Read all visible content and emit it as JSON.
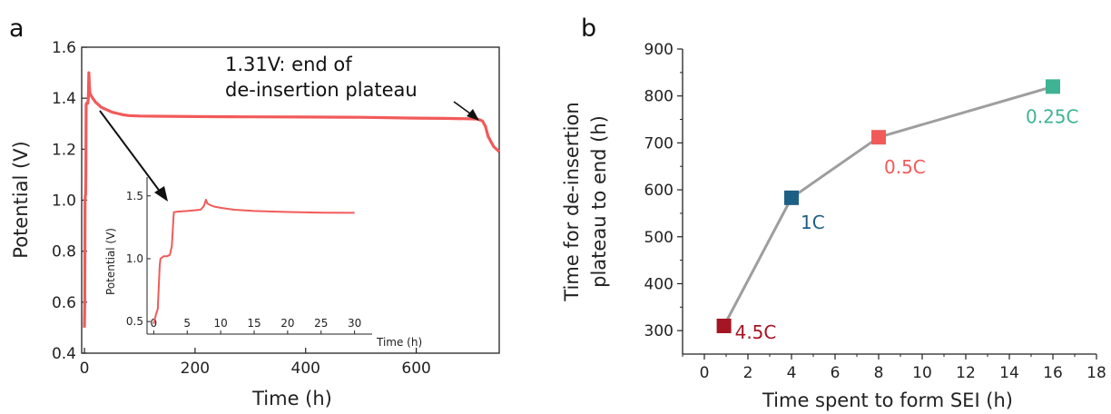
{
  "chart_data": [
    {
      "panel_label": "a",
      "type": "line",
      "xlabel": "Time (h)",
      "ylabel": "Potential (V)",
      "xlim": [
        -5,
        750
      ],
      "ylim": [
        0.4,
        1.6
      ],
      "xticks": [
        "0",
        "200",
        "400",
        "600"
      ],
      "yticks": [
        "0.4",
        "0.6",
        "0.8",
        "1.0",
        "1.2",
        "1.4",
        "1.6"
      ],
      "line_color": "#f25a5a",
      "series": [
        {
          "x": [
            0,
            0.5,
            1,
            1.5,
            2,
            2.5,
            3,
            3.5,
            4,
            5,
            6,
            7,
            8,
            9,
            10,
            12,
            15,
            20,
            25,
            30,
            40,
            50,
            60,
            70,
            80,
            100,
            150,
            200,
            300,
            400,
            500,
            600,
            650,
            700,
            710,
            715,
            720,
            725,
            730,
            740,
            750
          ],
          "y": [
            0.5,
            0.6,
            1.0,
            1.02,
            1.02,
            1.1,
            1.37,
            1.38,
            1.38,
            1.38,
            1.38,
            1.4,
            1.5,
            1.45,
            1.42,
            1.41,
            1.4,
            1.385,
            1.375,
            1.365,
            1.355,
            1.345,
            1.34,
            1.335,
            1.332,
            1.33,
            1.329,
            1.328,
            1.327,
            1.326,
            1.325,
            1.322,
            1.321,
            1.319,
            1.318,
            1.315,
            1.31,
            1.29,
            1.25,
            1.21,
            1.19
          ]
        }
      ],
      "annotations": [
        {
          "text_line1": "1.31V: end of",
          "text_line2": "de-insertion plateau",
          "x": 718,
          "y": 1.31
        }
      ],
      "inset": {
        "xlabel": "Time (h)",
        "ylabel": "Potential (V)",
        "xlim": [
          -1,
          31
        ],
        "ylim": [
          0.4,
          1.65
        ],
        "xticks": [
          "0",
          "5",
          "10",
          "15",
          "20",
          "25",
          "30"
        ],
        "yticks": [
          "0.5",
          "1.0",
          "1.5"
        ],
        "x": [
          0,
          0.3,
          0.6,
          0.9,
          1.0,
          1.5,
          2.0,
          2.4,
          2.7,
          3.0,
          3.5,
          5,
          7,
          7.5,
          7.8,
          8,
          8.5,
          9,
          10,
          12,
          15,
          20,
          25,
          30
        ],
        "y": [
          0.48,
          0.55,
          0.6,
          0.95,
          1.0,
          1.02,
          1.02,
          1.03,
          1.1,
          1.37,
          1.375,
          1.38,
          1.39,
          1.42,
          1.47,
          1.44,
          1.425,
          1.415,
          1.405,
          1.39,
          1.38,
          1.372,
          1.367,
          1.365
        ]
      }
    },
    {
      "panel_label": "b",
      "type": "line",
      "xlabel": "Time spent to form SEI (h)",
      "ylabel_line1": "Time for de-insertion",
      "ylabel_line2": "plateau to end (h)",
      "xlim": [
        -1,
        18
      ],
      "ylim": [
        250,
        900
      ],
      "xticks": [
        "0",
        "2",
        "4",
        "6",
        "8",
        "10",
        "12",
        "14",
        "16",
        "18"
      ],
      "yticks": [
        "300",
        "400",
        "500",
        "600",
        "700",
        "800",
        "900"
      ],
      "line_color": "#9e9e9e",
      "points": [
        {
          "x": 0.9,
          "y": 310,
          "label": "4.5C",
          "color": "#a51523"
        },
        {
          "x": 4,
          "y": 583,
          "label": "1C",
          "color": "#1e5f85"
        },
        {
          "x": 8,
          "y": 712,
          "label": "0.5C",
          "color": "#f25a5a"
        },
        {
          "x": 16,
          "y": 820,
          "label": "0.25C",
          "color": "#3fb393"
        }
      ]
    }
  ]
}
